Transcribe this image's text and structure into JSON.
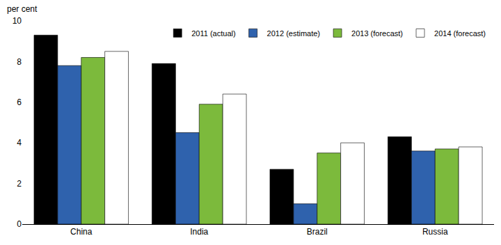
{
  "chart_data": {
    "type": "bar",
    "ylabel": "per cent",
    "categories": [
      "China",
      "India",
      "Brazil",
      "Russia"
    ],
    "series": [
      {
        "name": "2011 (actual)",
        "color": "#000000",
        "values": [
          9.3,
          7.9,
          2.7,
          4.3
        ]
      },
      {
        "name": "2012 (estimate)",
        "color": "#2f62ad",
        "values": [
          7.8,
          4.5,
          1.0,
          3.6
        ]
      },
      {
        "name": "2013 (forecast)",
        "color": "#7cba3c",
        "values": [
          8.2,
          5.9,
          3.5,
          3.7
        ]
      },
      {
        "name": "2014 (forecast)",
        "color": "#ffffff",
        "values": [
          8.5,
          6.4,
          4.0,
          3.8
        ]
      }
    ],
    "ylim": [
      0,
      10
    ],
    "yticks": [
      0,
      2,
      4,
      6,
      8,
      10
    ],
    "grid": false,
    "legend": "top-right"
  }
}
